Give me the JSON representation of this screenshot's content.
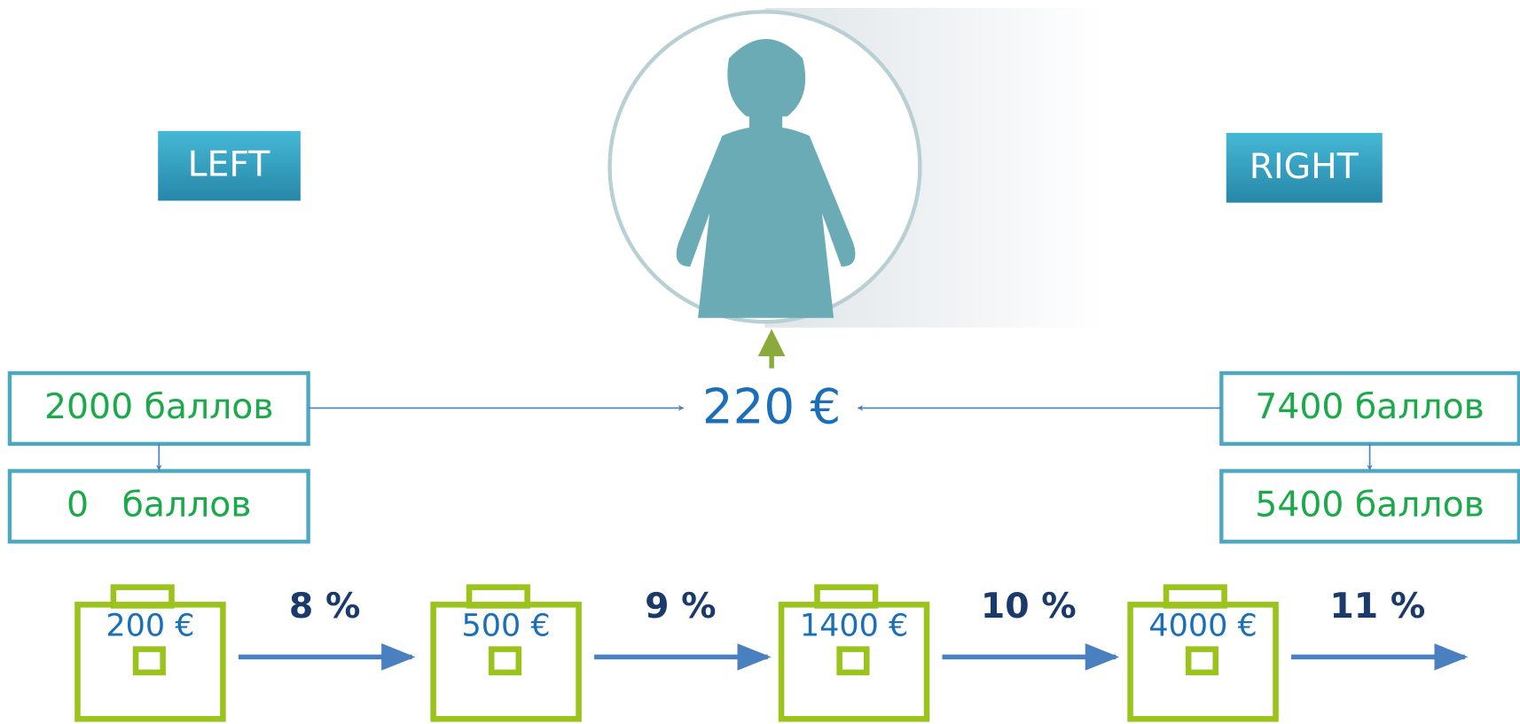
{
  "buttons": {
    "left": "LEFT",
    "right": "RIGHT"
  },
  "left_points": [
    "2000 баллов",
    "0   баллов"
  ],
  "right_points": [
    "7400 баллов",
    "5400 баллов"
  ],
  "center_amount": "220 €",
  "levels": [
    {
      "amount": "200 €",
      "percent": "8 %"
    },
    {
      "amount": "500 €",
      "percent": "9 %"
    },
    {
      "amount": "1400 €",
      "percent": "10 %"
    },
    {
      "amount": "4000 €",
      "percent": "11 %"
    }
  ]
}
